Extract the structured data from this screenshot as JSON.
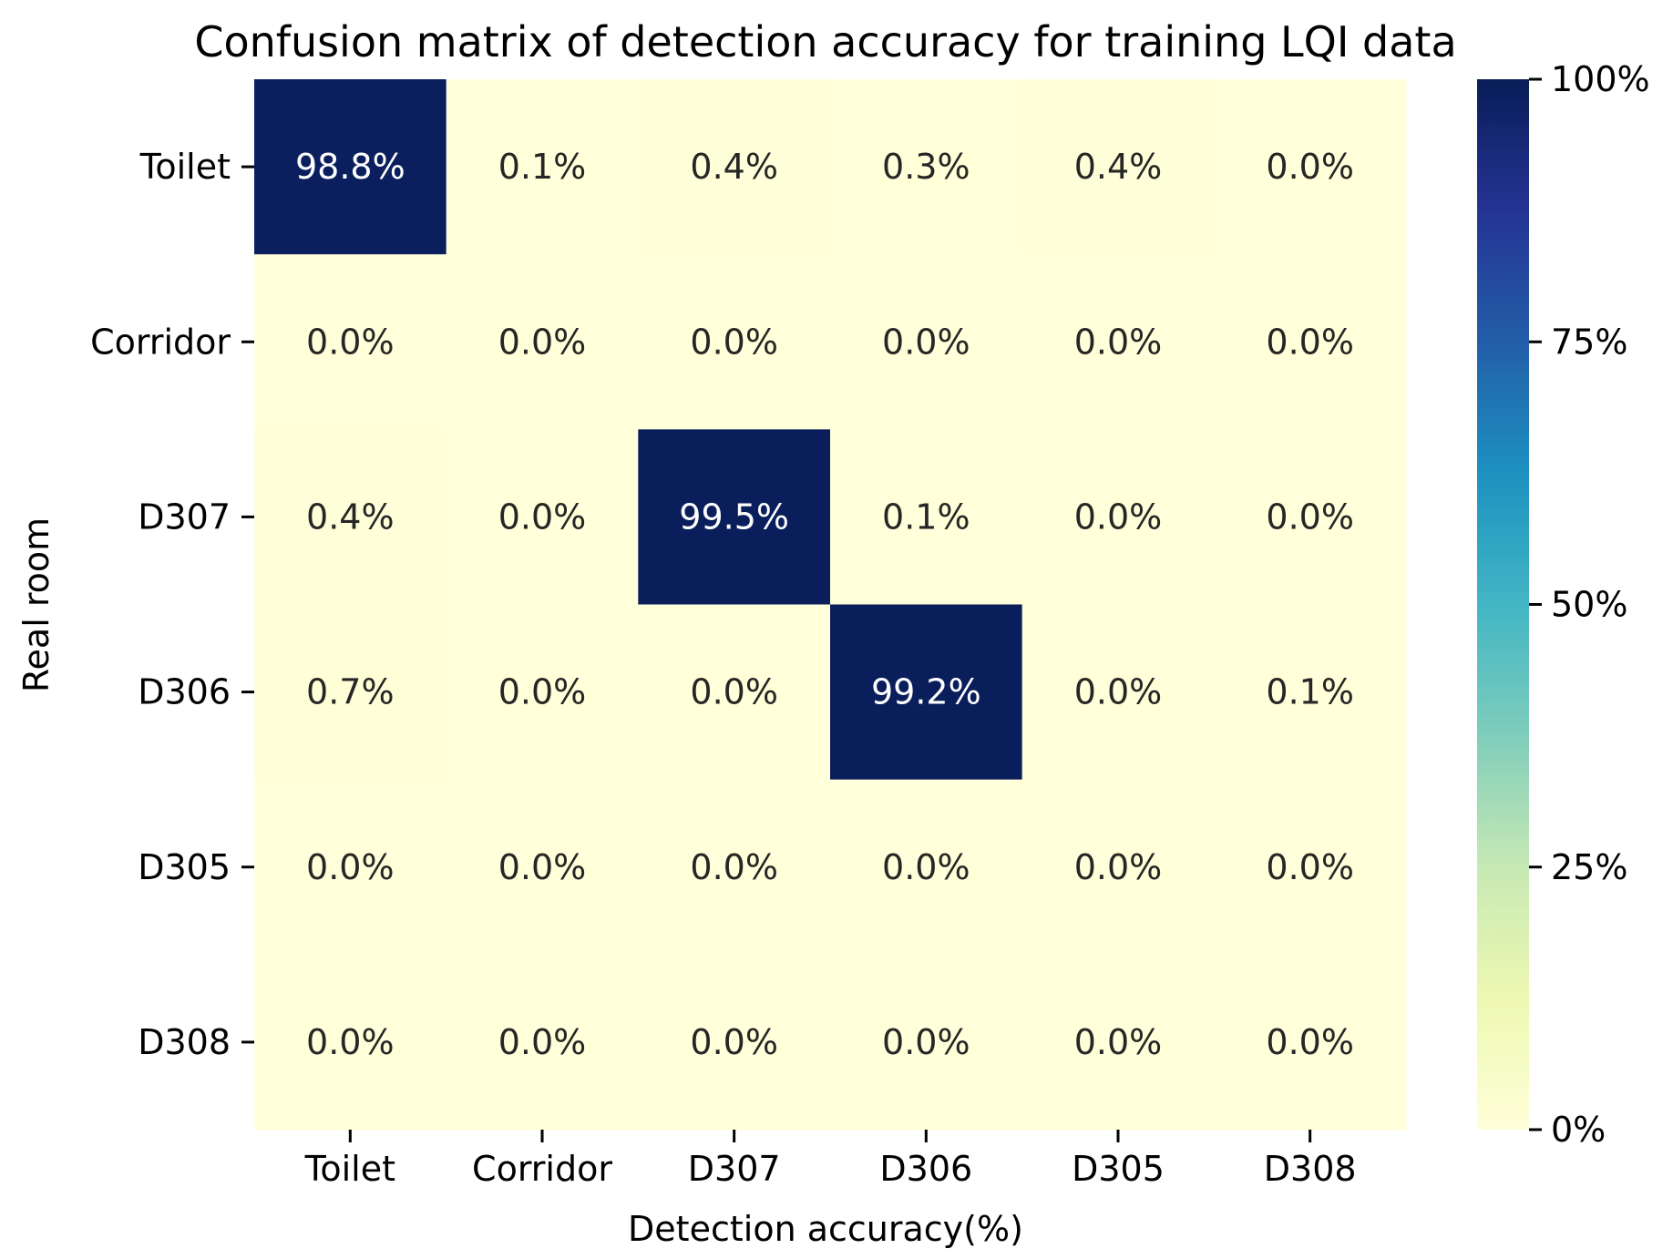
{
  "chart_data": {
    "type": "heatmap",
    "title": "Confusion matrix of detection accuracy for training LQI data",
    "xlabel": "Detection accuracy(%)",
    "ylabel": "Real room",
    "x_categories": [
      "Toilet",
      "Corridor",
      "D307",
      "D306",
      "D305",
      "D308"
    ],
    "y_categories": [
      "Toilet",
      "Corridor",
      "D307",
      "D306",
      "D305",
      "D308"
    ],
    "values": [
      [
        98.8,
        0.1,
        0.4,
        0.3,
        0.4,
        0.0
      ],
      [
        0.0,
        0.0,
        0.0,
        0.0,
        0.0,
        0.0
      ],
      [
        0.4,
        0.0,
        99.5,
        0.1,
        0.0,
        0.0
      ],
      [
        0.7,
        0.0,
        0.0,
        99.2,
        0.0,
        0.1
      ],
      [
        0.0,
        0.0,
        0.0,
        0.0,
        0.0,
        0.0
      ],
      [
        0.0,
        0.0,
        0.0,
        0.0,
        0.0,
        0.0
      ]
    ],
    "value_format": "percent_1dp",
    "colormap": "YlGnBu",
    "colorbar": {
      "range": [
        0,
        100
      ],
      "ticks": [
        0,
        25,
        50,
        75,
        100
      ],
      "tick_labels": [
        "0%",
        "25%",
        "50%",
        "75%",
        "100%"
      ]
    }
  }
}
